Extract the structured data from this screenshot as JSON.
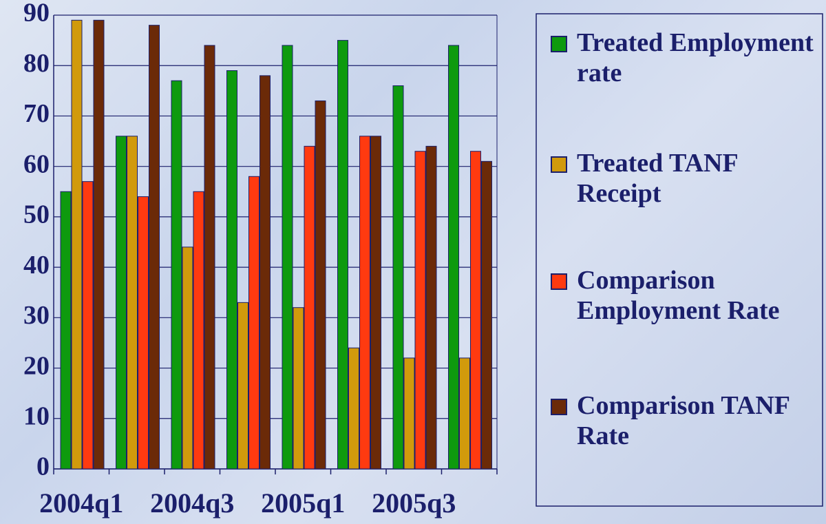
{
  "chart_data": {
    "type": "bar",
    "categories": [
      "2004q1",
      null,
      "2004q3",
      null,
      "2005q1",
      null,
      "2005q3",
      null
    ],
    "series": [
      {
        "name": "Treated Employment rate",
        "color": "#0e9a0e",
        "values": [
          55,
          66,
          77,
          79,
          84,
          85,
          76,
          84
        ]
      },
      {
        "name": "Treated TANF Receipt",
        "color": "#d19a0c",
        "values": [
          89,
          66,
          44,
          33,
          32,
          24,
          22,
          22
        ]
      },
      {
        "name": "Comparison Employment Rate",
        "color": "#ff3a10",
        "values": [
          57,
          54,
          55,
          58,
          64,
          66,
          63,
          63
        ]
      },
      {
        "name": "Comparison TANF Rate",
        "color": "#6b2a08",
        "values": [
          89,
          88,
          84,
          78,
          73,
          66,
          64,
          61
        ]
      }
    ],
    "ylim": [
      0,
      90
    ],
    "yticks": [
      0,
      10,
      20,
      30,
      40,
      50,
      60,
      70,
      80,
      90
    ],
    "grid": true
  }
}
